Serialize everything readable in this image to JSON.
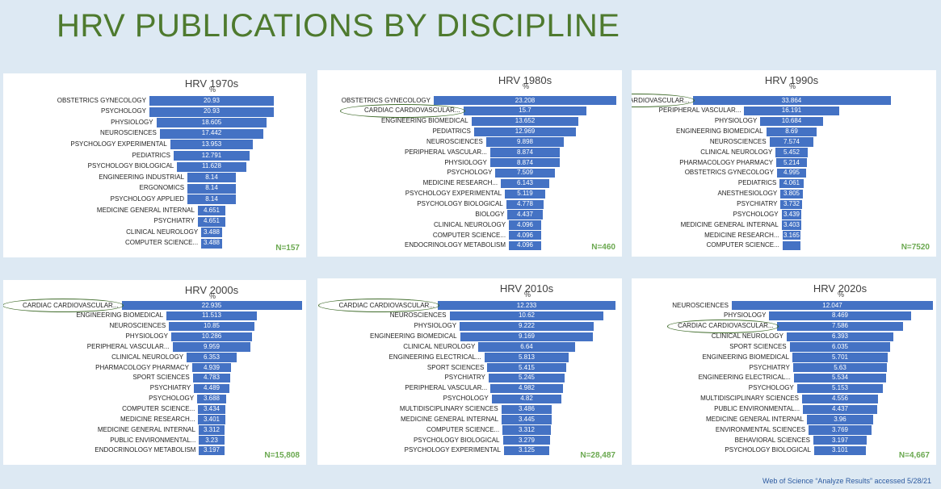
{
  "title": "HRV PUBLICATIONS BY DISCIPLINE",
  "footer": "Web of Science “Analyze Results” accessed 5/28/21",
  "colors": {
    "bar": "#4472c4",
    "title": "#4e7a2e",
    "n_label": "#6aa84f",
    "ring": "#3f6b2a"
  },
  "chart_data": [
    {
      "type": "bar",
      "title": "HRV 1970s",
      "ylabel": "%",
      "n": "N=157",
      "categories": [
        "OBSTETRICS GYNECOLOGY",
        "PSYCHOLOGY",
        "PHYSIOLOGY",
        "NEUROSCIENCES",
        "PSYCHOLOGY EXPERIMENTAL",
        "PEDIATRICS",
        "PSYCHOLOGY BIOLOGICAL",
        "ENGINEERING INDUSTRIAL",
        "ERGONOMICS",
        "PSYCHOLOGY APPLIED",
        "MEDICINE GENERAL INTERNAL",
        "PSYCHIATRY",
        "CLINICAL NEUROLOGY",
        "COMPUTER SCIENCE..."
      ],
      "values": [
        20.93,
        20.93,
        18.605,
        17.442,
        13.953,
        12.791,
        11.628,
        8.14,
        8.14,
        8.14,
        4.651,
        4.651,
        3.488,
        3.488
      ],
      "labels": [
        "20.93",
        "20.93",
        "18.605",
        "17.442",
        "13.953",
        "12.791",
        "11.628",
        "8.14",
        "8.14",
        "8.14",
        "4.651",
        "4.651",
        "3.488",
        "3.488"
      ],
      "circled": -1
    },
    {
      "type": "bar",
      "title": "HRV 1980s",
      "ylabel": "%",
      "n": "N=460",
      "categories": [
        "OBSTETRICS GYNECOLOGY",
        "CARDIAC CARDIOVASCULAR...",
        "ENGINEERING BIOMEDICAL",
        "PEDIATRICS",
        "NEUROSCIENCES",
        "PERIPHERAL VASCULAR...",
        "PHYSIOLOGY",
        "PSYCHOLOGY",
        "MEDICINE RESEARCH...",
        "PSYCHOLOGY EXPERIMENTAL",
        "PSYCHOLOGY BIOLOGICAL",
        "BIOLOGY",
        "CLINICAL NEUROLOGY",
        "COMPUTER SCIENCE...",
        "ENDOCRINOLOGY METABOLISM"
      ],
      "values": [
        23.208,
        15.7,
        13.652,
        12.969,
        9.898,
        8.874,
        8.874,
        7.509,
        6.143,
        5.119,
        4.778,
        4.437,
        4.096,
        4.096,
        4.096
      ],
      "labels": [
        "23.208",
        "15.7",
        "13.652",
        "12.969",
        "9.898",
        "8.874",
        "8.874",
        "7.509",
        "6.143",
        "5.119",
        "4.778",
        "4.437",
        "4.096",
        "4.096",
        "4.096"
      ],
      "circled": 1
    },
    {
      "type": "bar",
      "title": "HRV 1990s",
      "ylabel": "%",
      "n": "N=7520",
      "categories": [
        "CARDIAC CARDIOVASCULAR...",
        "PERIPHERAL VASCULAR...",
        "PHYSIOLOGY",
        "ENGINEERING BIOMEDICAL",
        "NEUROSCIENCES",
        "CLINICAL NEUROLOGY",
        "PHARMACOLOGY PHARMACY",
        "OBSTETRICS GYNECOLOGY",
        "PEDIATRICS",
        "ANESTHESIOLOGY",
        "PSYCHIATRY",
        "PSYCHOLOGY",
        "MEDICINE GENERAL INTERNAL",
        "MEDICINE RESEARCH...",
        "COMPUTER SCIENCE..."
      ],
      "values": [
        33.864,
        16.191,
        10.684,
        8.69,
        7.574,
        5.452,
        5.214,
        4.995,
        4.061,
        3.805,
        3.732,
        3.439,
        3.403,
        3.165,
        3.1
      ],
      "labels": [
        "33.864",
        "16.191",
        "10.684",
        "8.69",
        "7.574",
        "5.452",
        "5.214",
        "4.995",
        "4.061",
        "3.805",
        "3.732",
        "3.439",
        "3.403",
        "3.165",
        ""
      ],
      "circled": 0
    },
    {
      "type": "bar",
      "title": "HRV 2000s",
      "ylabel": "%",
      "n": "N=15,808",
      "categories": [
        "CARDIAC CARDIOVASCULAR...",
        "ENGINEERING BIOMEDICAL",
        "NEUROSCIENCES",
        "PHYSIOLOGY",
        "PERIPHERAL VASCULAR...",
        "CLINICAL NEUROLOGY",
        "PHARMACOLOGY PHARMACY",
        "SPORT SCIENCES",
        "PSYCHIATRY",
        "PSYCHOLOGY",
        "COMPUTER SCIENCE...",
        "MEDICINE RESEARCH...",
        "MEDICINE GENERAL INTERNAL",
        "PUBLIC ENVIRONMENTAL...",
        "ENDOCRINOLOGY METABOLISM"
      ],
      "values": [
        22.935,
        11.513,
        10.85,
        10.286,
        9.959,
        6.353,
        4.939,
        4.783,
        4.489,
        3.688,
        3.434,
        3.401,
        3.312,
        3.23,
        3.197
      ],
      "labels": [
        "22.935",
        "11.513",
        "10.85",
        "10.286",
        "9.959",
        "6.353",
        "4.939",
        "4.783",
        "4.489",
        "3.688",
        "3.434",
        "3.401",
        "3.312",
        "3.23",
        "3.197"
      ],
      "circled": 0
    },
    {
      "type": "bar",
      "title": "HRV 2010s",
      "ylabel": "%",
      "n": "N=28,487",
      "categories": [
        "CARDIAC CARDIOVASCULAR...",
        "NEUROSCIENCES",
        "PHYSIOLOGY",
        "ENGINEERING BIOMEDICAL",
        "CLINICAL NEUROLOGY",
        "ENGINEERING ELECTRICAL...",
        "SPORT SCIENCES",
        "PSYCHIATRY",
        "PERIPHERAL VASCULAR...",
        "PSYCHOLOGY",
        "MULTIDISCIPLINARY SCIENCES",
        "MEDICINE GENERAL INTERNAL",
        "COMPUTER SCIENCE...",
        "PSYCHOLOGY BIOLOGICAL",
        "PSYCHOLOGY EXPERIMENTAL"
      ],
      "values": [
        12.233,
        10.62,
        9.222,
        9.169,
        6.64,
        5.813,
        5.415,
        5.245,
        4.982,
        4.82,
        3.486,
        3.445,
        3.312,
        3.279,
        3.125
      ],
      "labels": [
        "12.233",
        "10.62",
        "9.222",
        "9.169",
        "6.64",
        "5.813",
        "5.415",
        "5.245",
        "4.982",
        "4.82",
        "3.486",
        "3.445",
        "3.312",
        "3.279",
        "3.125"
      ],
      "circled": 0
    },
    {
      "type": "bar",
      "title": "HRV 2020s",
      "ylabel": "%",
      "n": "N=4,667",
      "categories": [
        "NEUROSCIENCES",
        "PHYSIOLOGY",
        "CARDIAC CARDIOVASCULAR...",
        "CLINICAL NEUROLOGY",
        "SPORT SCIENCES",
        "ENGINEERING BIOMEDICAL",
        "PSYCHIATRY",
        "ENGINEERING ELECTRICAL...",
        "PSYCHOLOGY",
        "MULTIDISCIPLINARY SCIENCES",
        "PUBLIC ENVIRONMENTAL...",
        "MEDICINE GENERAL INTERNAL",
        "ENVIRONMENTAL SCIENCES",
        "BEHAVIORAL SCIENCES",
        "PSYCHOLOGY BIOLOGICAL"
      ],
      "values": [
        12.047,
        8.469,
        7.586,
        6.393,
        6.035,
        5.701,
        5.63,
        5.534,
        5.153,
        4.556,
        4.437,
        3.96,
        3.769,
        3.197,
        3.101
      ],
      "labels": [
        "12.047",
        "8.469",
        "7.586",
        "6.393",
        "6.035",
        "5.701",
        "5.63",
        "5.534",
        "5.153",
        "4.556",
        "4.437",
        "3.96",
        "3.769",
        "3.197",
        "3.101"
      ],
      "circled": 2
    }
  ]
}
